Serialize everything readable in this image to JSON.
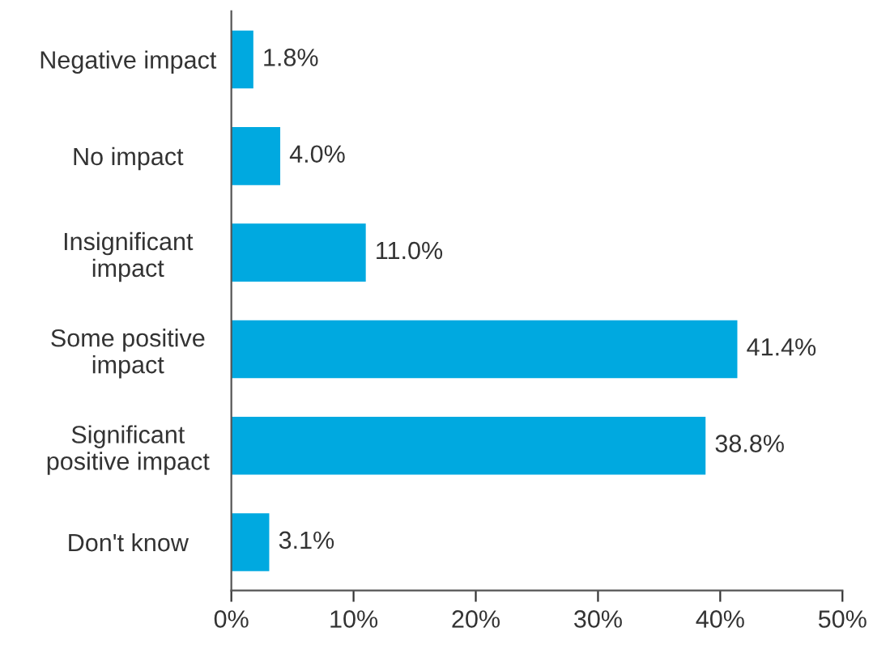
{
  "chart_data": {
    "type": "bar",
    "orientation": "horizontal",
    "categories": [
      "Negative impact",
      "No impact",
      "Insignificant\nimpact",
      "Some positive\nimpact",
      "Significant\npositive impact",
      "Don't know"
    ],
    "values": [
      1.8,
      4.0,
      11.0,
      41.4,
      38.8,
      3.1
    ],
    "value_labels": [
      "1.8%",
      "4.0%",
      "11.0%",
      "41.4%",
      "38.8%",
      "3.1%"
    ],
    "color": "#00a9e0",
    "xlim": [
      0,
      50
    ],
    "xticks": [
      {
        "value": 0,
        "label": "0%"
      },
      {
        "value": 10,
        "label": "10%"
      },
      {
        "value": 20,
        "label": "20%"
      },
      {
        "value": 30,
        "label": "30%"
      },
      {
        "value": 40,
        "label": "40%"
      },
      {
        "value": 50,
        "label": "50%"
      }
    ],
    "grid": false,
    "legend": false
  }
}
